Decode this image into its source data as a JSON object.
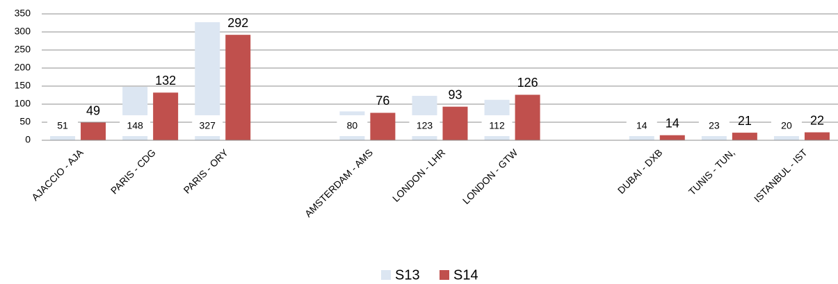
{
  "chart_data": {
    "type": "bar",
    "categories": [
      "AJACCIO - AJA",
      "PARIS - CDG",
      "PARIS - ORY",
      null,
      "AMSTERDAM - AMS",
      "LONDON - LHR",
      "LONDON - GTW",
      null,
      "DUBAI - DXB",
      "TUNIS - TUN,",
      "ISTANBUL - IST"
    ],
    "series": [
      {
        "name": "S13",
        "color": "#dce6f2",
        "values": [
          51,
          148,
          327,
          null,
          80,
          123,
          112,
          null,
          14,
          23,
          20
        ]
      },
      {
        "name": "S14",
        "color": "#c0504d",
        "values": [
          49,
          132,
          292,
          null,
          76,
          93,
          126,
          null,
          14,
          21,
          22
        ]
      }
    ],
    "ylim": [
      0,
      350
    ],
    "yticks": [
      0,
      50,
      100,
      150,
      200,
      250,
      300,
      350
    ],
    "grid": true,
    "legend": "bottom"
  }
}
